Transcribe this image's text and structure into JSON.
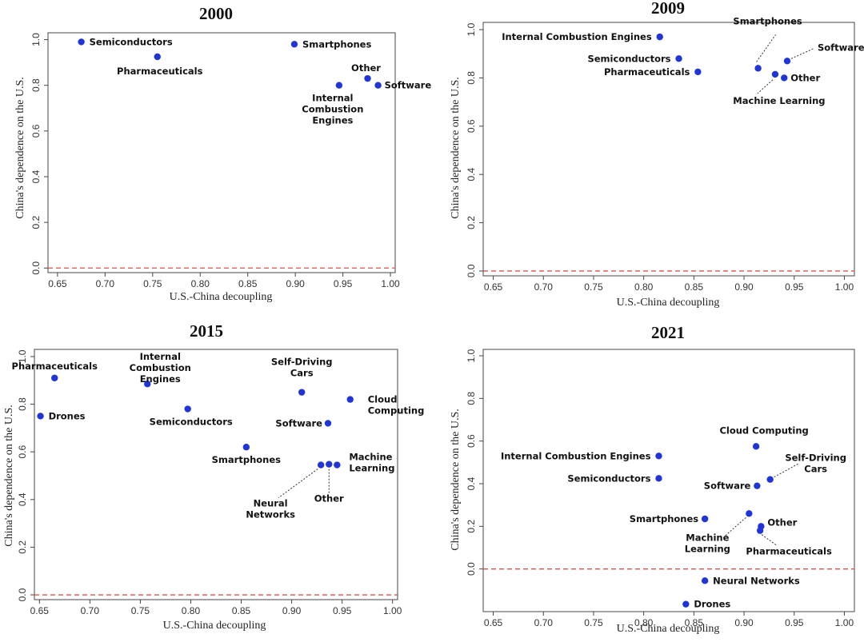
{
  "colors": {
    "point": "#1f35d8",
    "zero_line": "#d9534f",
    "axis": "#444444"
  },
  "chart_data": [
    {
      "type": "scatter",
      "title": "2000",
      "xlabel": "U.S.-China decoupling",
      "ylabel": "China's dependence on the U.S.",
      "xlim": [
        0.64,
        1.005
      ],
      "ylim": [
        -0.02,
        1.03
      ],
      "xticks": [
        "0.65",
        "0.70",
        "0.75",
        "0.80",
        "0.85",
        "0.90",
        "0.95",
        "1.00"
      ],
      "yticks": [
        "0.0",
        "0.2",
        "0.4",
        "0.6",
        "0.8",
        "1.0"
      ],
      "reference_line_y": 0,
      "points": [
        {
          "label": "Semiconductors",
          "x": 0.675,
          "y": 0.99
        },
        {
          "label": "Pharmaceuticals",
          "x": 0.755,
          "y": 0.925
        },
        {
          "label": "Smartphones",
          "x": 0.899,
          "y": 0.98
        },
        {
          "label": "Internal Combustion Engines",
          "x": 0.946,
          "y": 0.8
        },
        {
          "label": "Other",
          "x": 0.976,
          "y": 0.83
        },
        {
          "label": "Software",
          "x": 0.987,
          "y": 0.8
        }
      ]
    },
    {
      "type": "scatter",
      "title": "2009",
      "xlabel": "U.S.-China decoupling",
      "ylabel": "China's dependence on the U.S.",
      "xlim": [
        0.64,
        1.01
      ],
      "ylim": [
        -0.02,
        1.03
      ],
      "xticks": [
        "0.65",
        "0.70",
        "0.75",
        "0.80",
        "0.85",
        "0.90",
        "0.95",
        "1.00"
      ],
      "yticks": [
        "0.0",
        "0.2",
        "0.4",
        "0.6",
        "0.8",
        "1.0"
      ],
      "reference_line_y": 0,
      "points": [
        {
          "label": "Internal Combustion Engines",
          "x": 0.816,
          "y": 0.97
        },
        {
          "label": "Semiconductors",
          "x": 0.835,
          "y": 0.88
        },
        {
          "label": "Pharmaceuticals",
          "x": 0.854,
          "y": 0.825
        },
        {
          "label": "Smartphones",
          "x": 0.914,
          "y": 0.84
        },
        {
          "label": "Machine Learning",
          "x": 0.931,
          "y": 0.815
        },
        {
          "label": "Other",
          "x": 0.94,
          "y": 0.8
        },
        {
          "label": "Software",
          "x": 0.943,
          "y": 0.87
        }
      ]
    },
    {
      "type": "scatter",
      "title": "2015",
      "xlabel": "U.S.-China decoupling",
      "ylabel": "China's dependence on the U.S.",
      "xlim": [
        0.645,
        1.005
      ],
      "ylim": [
        -0.02,
        1.03
      ],
      "xticks": [
        "0.65",
        "0.70",
        "0.75",
        "0.80",
        "0.85",
        "0.90",
        "0.95",
        "1.00"
      ],
      "yticks": [
        "0.0",
        "0.2",
        "0.4",
        "0.6",
        "0.8",
        "1.0"
      ],
      "reference_line_y": 0,
      "points": [
        {
          "label": "Pharmaceuticals",
          "x": 0.665,
          "y": 0.91
        },
        {
          "label": "Drones",
          "x": 0.651,
          "y": 0.75
        },
        {
          "label": "Internal Combustion Engines",
          "x": 0.757,
          "y": 0.885
        },
        {
          "label": "Semiconductors",
          "x": 0.797,
          "y": 0.78
        },
        {
          "label": "Self-Driving Cars",
          "x": 0.91,
          "y": 0.85
        },
        {
          "label": "Cloud Computing",
          "x": 0.958,
          "y": 0.82
        },
        {
          "label": "Software",
          "x": 0.936,
          "y": 0.72
        },
        {
          "label": "Smartphones",
          "x": 0.855,
          "y": 0.62
        },
        {
          "label": "Neural Networks",
          "x": 0.929,
          "y": 0.545
        },
        {
          "label": "Other",
          "x": 0.937,
          "y": 0.548
        },
        {
          "label": "Machine Learning",
          "x": 0.945,
          "y": 0.545
        }
      ]
    },
    {
      "type": "scatter",
      "title": "2021",
      "xlabel": "U.S.-China decoupling",
      "ylabel": "China's dependence on the U.S.",
      "xlim": [
        0.64,
        1.01
      ],
      "ylim": [
        -0.2,
        1.03
      ],
      "xticks": [
        "0.65",
        "0.70",
        "0.75",
        "0.80",
        "0.85",
        "0.90",
        "0.95",
        "1.00"
      ],
      "yticks": [
        "0.0",
        "0.2",
        "0.4",
        "0.6",
        "0.8",
        "1.0"
      ],
      "reference_line_y": 0,
      "points": [
        {
          "label": "Cloud Computing",
          "x": 0.912,
          "y": 0.575
        },
        {
          "label": "Internal Combustion Engines",
          "x": 0.815,
          "y": 0.53
        },
        {
          "label": "Semiconductors",
          "x": 0.815,
          "y": 0.425
        },
        {
          "label": "Self-Driving Cars",
          "x": 0.926,
          "y": 0.42
        },
        {
          "label": "Software",
          "x": 0.913,
          "y": 0.39
        },
        {
          "label": "Smartphones",
          "x": 0.861,
          "y": 0.235
        },
        {
          "label": "Machine Learning",
          "x": 0.905,
          "y": 0.26
        },
        {
          "label": "Other",
          "x": 0.917,
          "y": 0.2
        },
        {
          "label": "Pharmaceuticals",
          "x": 0.916,
          "y": 0.18
        },
        {
          "label": "Neural Networks",
          "x": 0.861,
          "y": -0.055
        },
        {
          "label": "Drones",
          "x": 0.842,
          "y": -0.165
        }
      ]
    }
  ]
}
